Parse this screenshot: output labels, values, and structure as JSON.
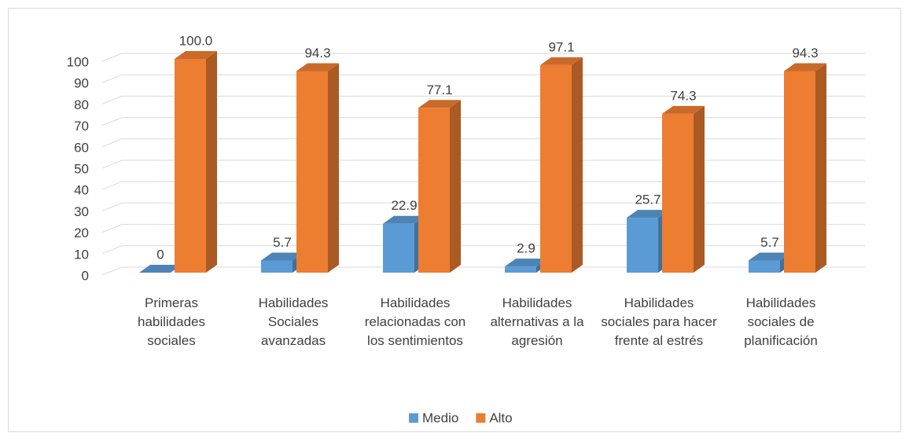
{
  "chart_data": {
    "type": "bar3d",
    "categories": [
      "Primeras habilidades sociales",
      "Habilidades Sociales avanzadas",
      "Habilidades relacionadas con los sentimientos",
      "Habilidades alternativas a la agresión",
      "Habilidades sociales para hacer frente al estrés",
      "Habilidades sociales de planificación"
    ],
    "series": [
      {
        "name": "Medio",
        "color": "#5b9bd5",
        "values": [
          0,
          5.7,
          22.9,
          2.9,
          25.7,
          5.7
        ]
      },
      {
        "name": "Alto",
        "color": "#ed7d31",
        "values": [
          100,
          94.3,
          77.1,
          97.1,
          74.3,
          94.3
        ],
        "value_labels": [
          "100.0",
          "94.3",
          "77.1",
          "97.1",
          "74.3",
          "94.3"
        ]
      }
    ],
    "ylim": [
      0,
      100
    ],
    "yticks": [
      0,
      10,
      20,
      30,
      40,
      50,
      60,
      70,
      80,
      90,
      100
    ],
    "grid": true,
    "legend": "bottom"
  }
}
